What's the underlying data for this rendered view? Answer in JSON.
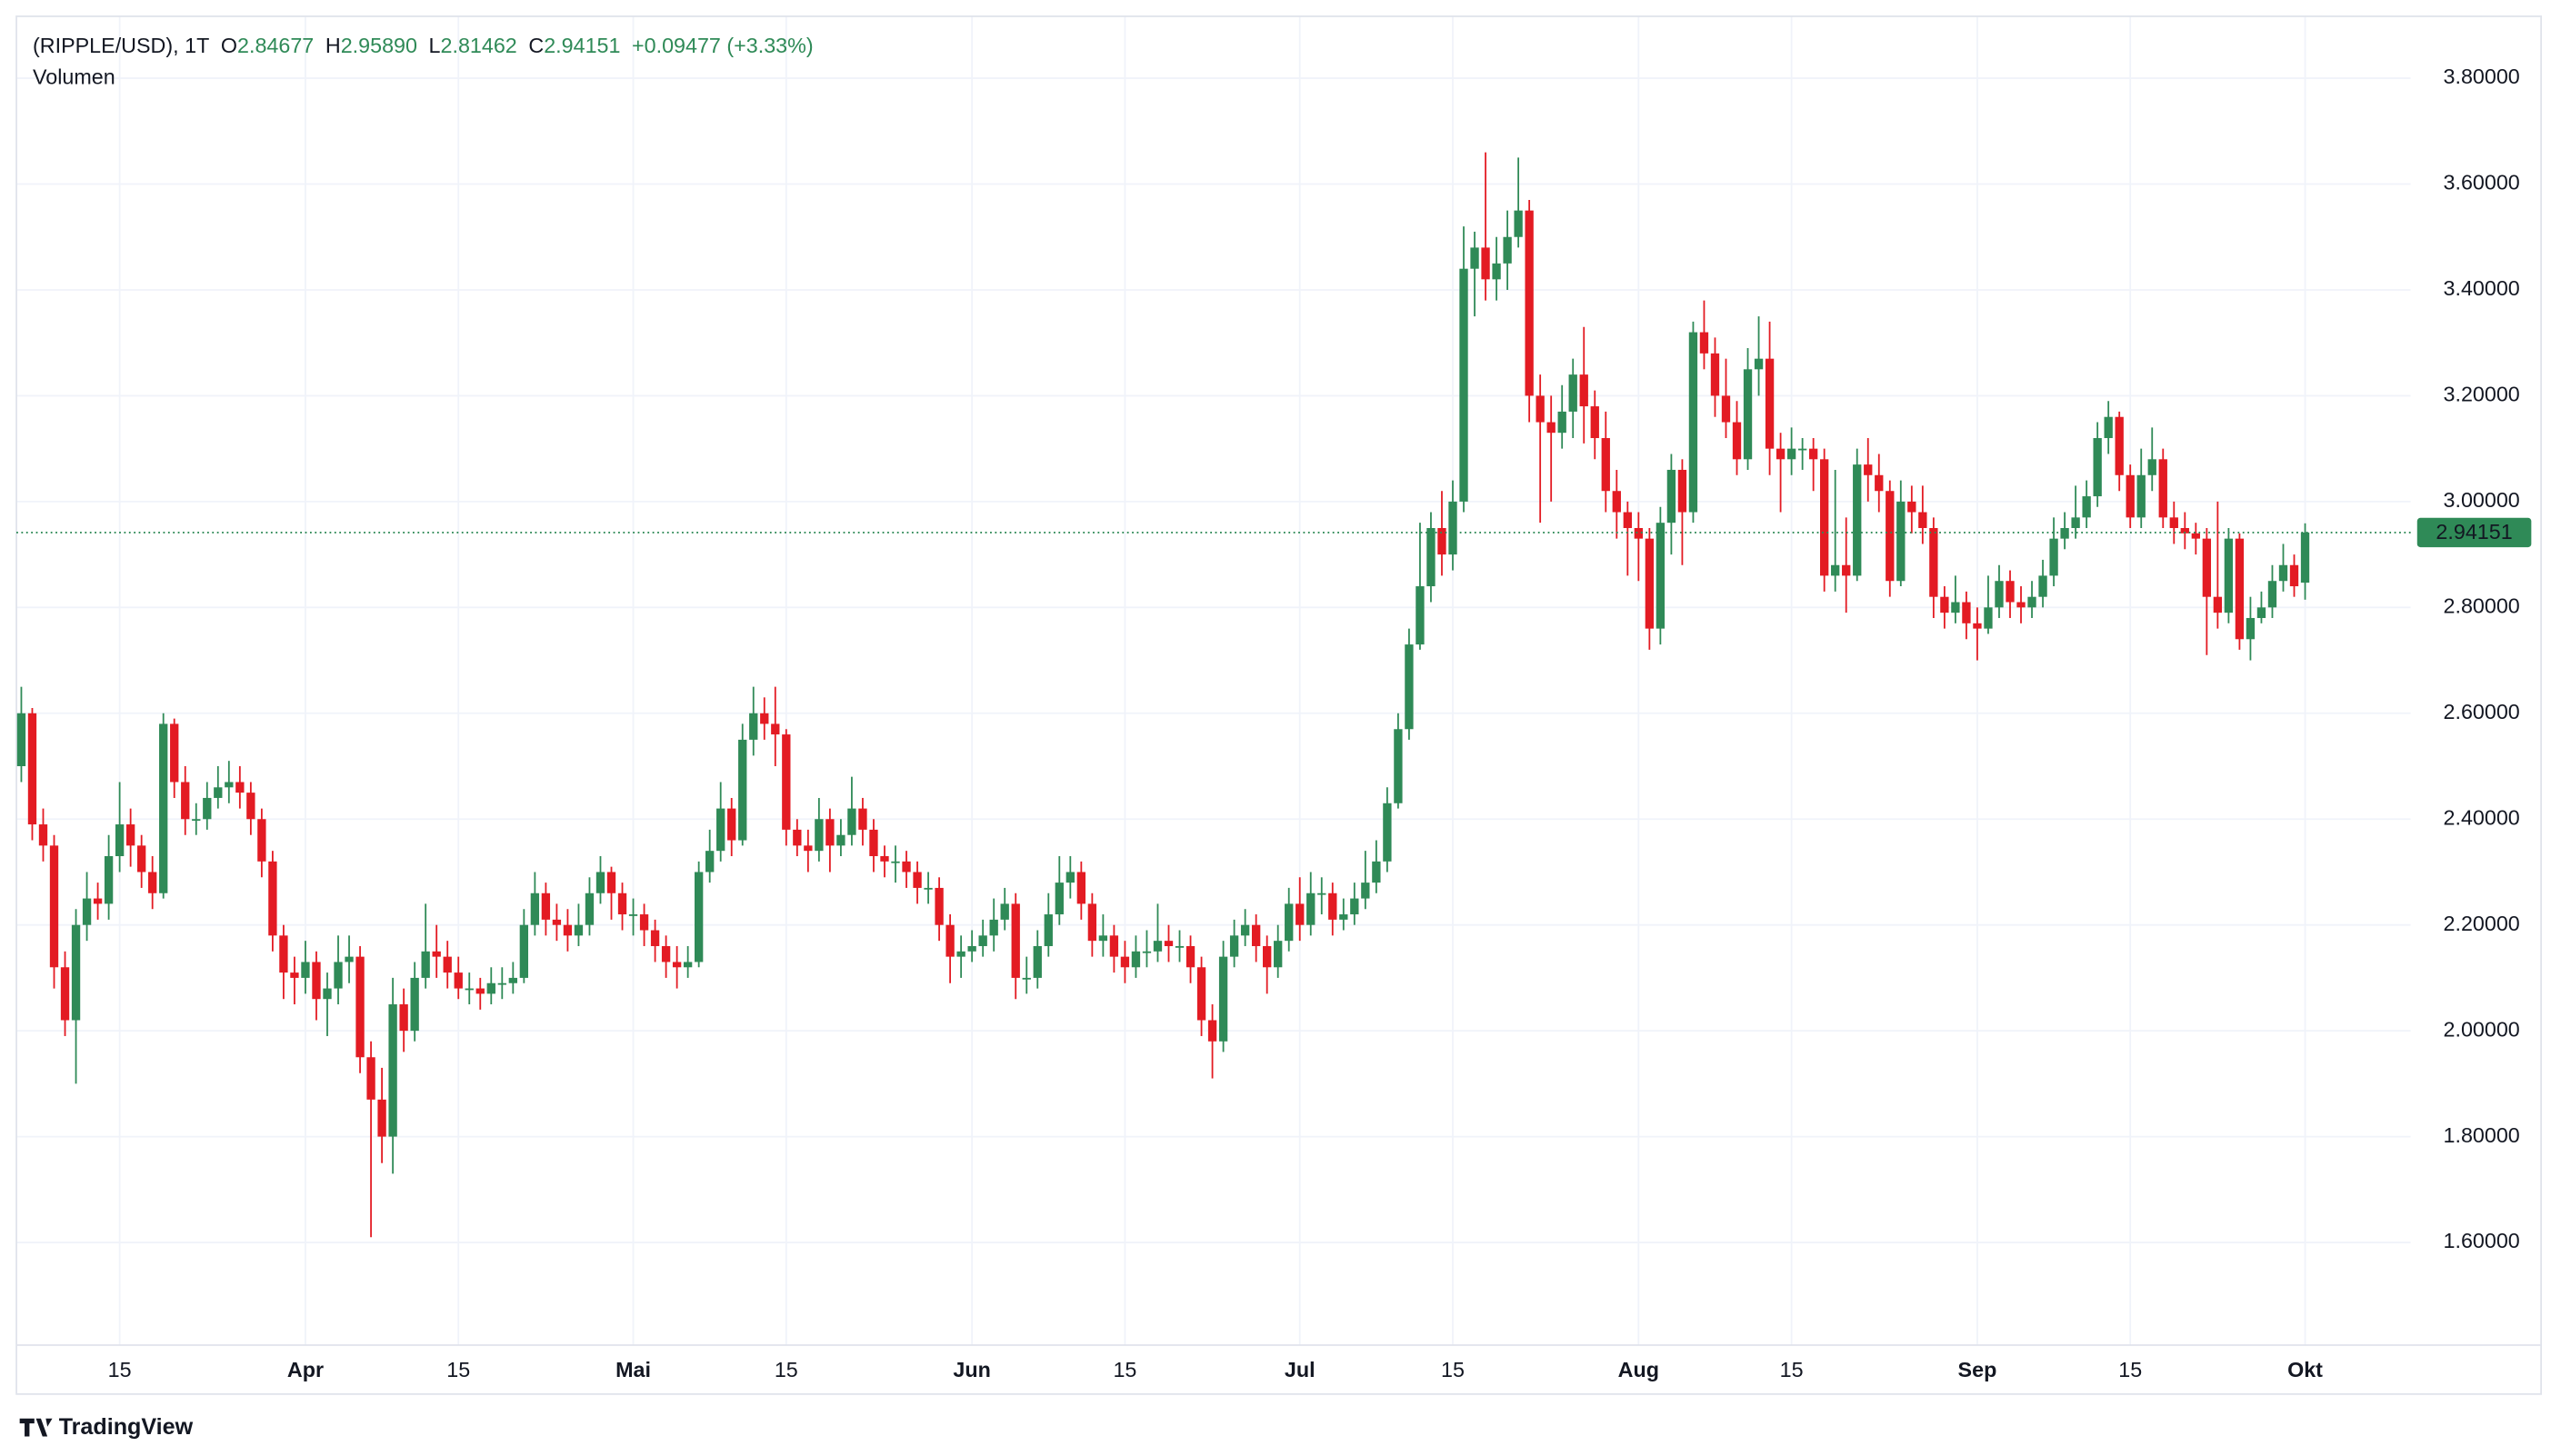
{
  "chart_data": {
    "type": "candlestick",
    "legend": {
      "symbol": "(RIPPLE/USD), 1T",
      "items": [
        {
          "label": "O",
          "value": "2.84677"
        },
        {
          "label": "H",
          "value": "2.95890"
        },
        {
          "label": "L",
          "value": "2.81462"
        },
        {
          "label": "C",
          "value": "2.94151"
        }
      ],
      "change": "+0.09477 (+3.33%)"
    },
    "volume_label": "Volumen",
    "source": "TradingView",
    "up_color": "#2f8a57",
    "down_color": "#e31b23",
    "grid": true,
    "ylim": [
      1.406,
      3.917
    ],
    "yticks": [
      {
        "value": 1.6,
        "label": "1.60000"
      },
      {
        "value": 1.8,
        "label": "1.80000"
      },
      {
        "value": 2.0,
        "label": "2.00000"
      },
      {
        "value": 2.2,
        "label": "2.20000"
      },
      {
        "value": 2.4,
        "label": "2.40000"
      },
      {
        "value": 2.6,
        "label": "2.60000"
      },
      {
        "value": 2.8,
        "label": "2.80000"
      },
      {
        "value": 3.0,
        "label": "3.00000"
      },
      {
        "value": 3.2,
        "label": "3.20000"
      },
      {
        "value": 3.4,
        "label": "3.40000"
      },
      {
        "value": 3.6,
        "label": "3.60000"
      },
      {
        "value": 3.8,
        "label": "3.80000"
      }
    ],
    "categories": [
      null,
      null,
      null,
      null,
      null,
      null,
      null,
      null,
      null,
      "15",
      null,
      null,
      null,
      null,
      null,
      null,
      null,
      null,
      null,
      null,
      null,
      null,
      null,
      null,
      null,
      null,
      "Apr",
      null,
      null,
      null,
      null,
      null,
      null,
      null,
      null,
      null,
      null,
      null,
      null,
      null,
      "15",
      null,
      null,
      null,
      null,
      null,
      null,
      null,
      null,
      null,
      null,
      null,
      null,
      null,
      null,
      null,
      "Mai",
      null,
      null,
      null,
      null,
      null,
      null,
      null,
      null,
      null,
      null,
      null,
      null,
      null,
      "15",
      null,
      null,
      null,
      null,
      null,
      null,
      null,
      null,
      null,
      null,
      null,
      null,
      null,
      null,
      null,
      null,
      "Jun",
      null,
      null,
      null,
      null,
      null,
      null,
      null,
      null,
      null,
      null,
      null,
      null,
      null,
      "15",
      null,
      null,
      null,
      null,
      null,
      null,
      null,
      null,
      null,
      null,
      null,
      null,
      null,
      null,
      null,
      "Jul",
      null,
      null,
      null,
      null,
      null,
      null,
      null,
      null,
      null,
      null,
      null,
      null,
      null,
      "15",
      null,
      null,
      null,
      null,
      null,
      null,
      null,
      null,
      null,
      null,
      null,
      null,
      null,
      null,
      null,
      null,
      "Aug",
      null,
      null,
      null,
      null,
      null,
      null,
      null,
      null,
      null,
      null,
      null,
      null,
      null,
      "15",
      null,
      null,
      null,
      null,
      null,
      null,
      null,
      null,
      null,
      null,
      null,
      null,
      null,
      null,
      null,
      null,
      "Sep",
      null,
      null,
      null,
      null,
      null,
      null,
      null,
      null,
      null,
      null,
      null,
      null,
      null,
      "15",
      null,
      null,
      null,
      null,
      null,
      null,
      null,
      null,
      null,
      null,
      null,
      null,
      null,
      null,
      null,
      "Okt"
    ],
    "open": [
      2.5,
      2.6,
      2.39,
      2.35,
      2.12,
      2.02,
      2.2,
      2.25,
      2.24,
      2.33,
      2.39,
      2.35,
      2.3,
      2.26,
      2.58,
      2.47,
      2.4,
      2.4,
      2.44,
      2.46,
      2.47,
      2.45,
      2.4,
      2.32,
      2.18,
      2.11,
      2.1,
      2.13,
      2.06,
      2.08,
      2.13,
      2.14,
      1.95,
      1.87,
      1.8,
      2.05,
      2.0,
      2.1,
      2.15,
      2.14,
      2.11,
      2.08,
      2.08,
      2.07,
      2.09,
      2.09,
      2.1,
      2.2,
      2.26,
      2.21,
      2.2,
      2.18,
      2.2,
      2.26,
      2.3,
      2.26,
      2.22,
      2.22,
      2.19,
      2.16,
      2.13,
      2.12,
      2.13,
      2.3,
      2.34,
      2.42,
      2.36,
      2.55,
      2.6,
      2.58,
      2.56,
      2.38,
      2.35,
      2.34,
      2.4,
      2.35,
      2.37,
      2.42,
      2.38,
      2.33,
      2.32,
      2.32,
      2.3,
      2.27,
      2.27,
      2.2,
      2.14,
      2.15,
      2.16,
      2.18,
      2.21,
      2.24,
      2.1,
      2.1,
      2.16,
      2.22,
      2.28,
      2.3,
      2.24,
      2.17,
      2.18,
      2.14,
      2.12,
      2.15,
      2.15,
      2.17,
      2.16,
      2.16,
      2.12,
      2.02,
      1.98,
      2.14,
      2.18,
      2.2,
      2.16,
      2.12,
      2.17,
      2.24,
      2.2,
      2.26,
      2.26,
      2.21,
      2.22,
      2.25,
      2.28,
      2.32,
      2.43,
      2.57,
      2.73,
      2.84,
      2.95,
      2.9,
      3.0,
      3.44,
      3.48,
      3.42,
      3.45,
      3.5,
      3.55,
      3.2,
      3.15,
      3.13,
      3.17,
      3.24,
      3.18,
      3.12,
      3.02,
      2.98,
      2.95,
      2.93,
      2.76,
      2.96,
      3.06,
      2.98,
      3.32,
      3.28,
      3.2,
      3.15,
      3.08,
      3.25,
      3.27,
      3.1,
      3.08,
      3.1,
      3.1,
      3.08,
      2.86,
      2.88,
      2.86,
      3.07,
      3.05,
      3.02,
      2.85,
      3.0,
      2.98,
      2.95,
      2.82,
      2.79,
      2.81,
      2.77,
      2.76,
      2.8,
      2.85,
      2.81,
      2.8,
      2.82,
      2.86,
      2.93,
      2.95,
      2.97,
      3.01,
      3.12,
      3.16,
      3.05,
      2.97,
      3.05,
      3.08,
      2.97,
      2.95,
      2.94,
      2.93,
      2.82,
      2.79,
      2.93,
      2.74,
      2.78,
      2.8,
      2.85,
      2.88,
      2.84677
    ],
    "high": [
      2.65,
      2.61,
      2.42,
      2.37,
      2.15,
      2.23,
      2.3,
      2.28,
      2.37,
      2.47,
      2.42,
      2.37,
      2.33,
      2.6,
      2.59,
      2.5,
      2.43,
      2.47,
      2.5,
      2.51,
      2.5,
      2.47,
      2.42,
      2.34,
      2.2,
      2.14,
      2.17,
      2.15,
      2.11,
      2.18,
      2.18,
      2.16,
      1.98,
      1.93,
      2.1,
      2.08,
      2.13,
      2.24,
      2.2,
      2.17,
      2.14,
      2.11,
      2.1,
      2.12,
      2.12,
      2.13,
      2.23,
      2.3,
      2.28,
      2.24,
      2.23,
      2.24,
      2.29,
      2.33,
      2.31,
      2.28,
      2.25,
      2.24,
      2.21,
      2.18,
      2.16,
      2.16,
      2.32,
      2.38,
      2.47,
      2.44,
      2.58,
      2.65,
      2.63,
      2.65,
      2.57,
      2.4,
      2.38,
      2.44,
      2.42,
      2.4,
      2.48,
      2.44,
      2.4,
      2.35,
      2.35,
      2.34,
      2.32,
      2.3,
      2.29,
      2.22,
      2.18,
      2.19,
      2.21,
      2.25,
      2.27,
      2.26,
      2.14,
      2.19,
      2.26,
      2.33,
      2.33,
      2.32,
      2.26,
      2.22,
      2.2,
      2.17,
      2.18,
      2.19,
      2.24,
      2.2,
      2.19,
      2.18,
      2.14,
      2.05,
      2.17,
      2.21,
      2.23,
      2.22,
      2.18,
      2.2,
      2.27,
      2.29,
      2.3,
      2.29,
      2.28,
      2.25,
      2.28,
      2.34,
      2.36,
      2.46,
      2.6,
      2.76,
      2.96,
      2.98,
      3.02,
      3.04,
      3.52,
      3.51,
      3.66,
      3.5,
      3.55,
      3.65,
      3.57,
      3.24,
      3.2,
      3.22,
      3.27,
      3.33,
      3.21,
      3.17,
      3.06,
      3.0,
      2.98,
      2.95,
      2.99,
      3.09,
      3.08,
      3.34,
      3.38,
      3.31,
      3.27,
      3.19,
      3.29,
      3.35,
      3.34,
      3.13,
      3.14,
      3.12,
      3.12,
      3.1,
      3.06,
      2.97,
      3.1,
      3.12,
      3.09,
      3.04,
      3.04,
      3.03,
      3.03,
      2.97,
      2.84,
      2.86,
      2.83,
      2.8,
      2.86,
      2.88,
      2.87,
      2.84,
      2.85,
      2.89,
      2.97,
      2.98,
      3.03,
      3.04,
      3.15,
      3.19,
      3.17,
      3.07,
      3.1,
      3.14,
      3.1,
      3.0,
      2.98,
      2.96,
      2.95,
      3.0,
      2.95,
      2.94,
      2.82,
      2.83,
      2.88,
      2.92,
      2.9,
      2.9589
    ],
    "low": [
      2.47,
      2.36,
      2.32,
      2.08,
      1.99,
      1.9,
      2.17,
      2.21,
      2.21,
      2.3,
      2.31,
      2.27,
      2.23,
      2.25,
      2.44,
      2.37,
      2.37,
      2.38,
      2.42,
      2.43,
      2.42,
      2.37,
      2.29,
      2.15,
      2.06,
      2.05,
      2.07,
      2.02,
      1.99,
      2.05,
      2.09,
      1.92,
      1.61,
      1.75,
      1.73,
      1.96,
      1.98,
      2.08,
      2.1,
      2.08,
      2.06,
      2.05,
      2.04,
      2.05,
      2.06,
      2.07,
      2.09,
      2.18,
      2.18,
      2.17,
      2.15,
      2.16,
      2.18,
      2.24,
      2.21,
      2.19,
      2.18,
      2.16,
      2.13,
      2.1,
      2.08,
      2.1,
      2.12,
      2.28,
      2.32,
      2.33,
      2.35,
      2.52,
      2.55,
      2.5,
      2.35,
      2.33,
      2.3,
      2.32,
      2.3,
      2.33,
      2.35,
      2.35,
      2.3,
      2.29,
      2.28,
      2.27,
      2.24,
      2.24,
      2.17,
      2.09,
      2.1,
      2.13,
      2.14,
      2.15,
      2.19,
      2.06,
      2.07,
      2.08,
      2.14,
      2.2,
      2.25,
      2.21,
      2.14,
      2.14,
      2.11,
      2.09,
      2.1,
      2.12,
      2.13,
      2.13,
      2.13,
      2.09,
      1.99,
      1.91,
      1.96,
      2.12,
      2.16,
      2.13,
      2.07,
      2.1,
      2.15,
      2.17,
      2.18,
      2.22,
      2.18,
      2.19,
      2.2,
      2.23,
      2.26,
      2.3,
      2.42,
      2.55,
      2.72,
      2.81,
      2.86,
      2.87,
      2.98,
      3.35,
      3.38,
      3.38,
      3.4,
      3.48,
      3.15,
      2.96,
      3.0,
      3.1,
      3.12,
      3.11,
      3.08,
      2.98,
      2.93,
      2.86,
      2.85,
      2.72,
      2.73,
      2.9,
      2.88,
      2.96,
      3.25,
      3.16,
      3.12,
      3.05,
      3.06,
      3.2,
      3.05,
      2.98,
      3.05,
      3.06,
      3.02,
      2.83,
      2.83,
      2.79,
      2.85,
      3.0,
      2.98,
      2.82,
      2.84,
      2.94,
      2.92,
      2.78,
      2.76,
      2.77,
      2.74,
      2.7,
      2.75,
      2.78,
      2.78,
      2.77,
      2.78,
      2.8,
      2.84,
      2.91,
      2.93,
      2.95,
      2.99,
      3.09,
      3.02,
      2.95,
      2.95,
      3.02,
      2.95,
      2.92,
      2.91,
      2.9,
      2.71,
      2.76,
      2.77,
      2.72,
      2.7,
      2.77,
      2.78,
      2.83,
      2.82,
      2.81462
    ],
    "close": [
      2.6,
      2.39,
      2.35,
      2.12,
      2.02,
      2.2,
      2.25,
      2.24,
      2.33,
      2.39,
      2.35,
      2.3,
      2.26,
      2.58,
      2.47,
      2.4,
      2.4,
      2.44,
      2.46,
      2.47,
      2.45,
      2.4,
      2.32,
      2.18,
      2.11,
      2.1,
      2.13,
      2.06,
      2.08,
      2.13,
      2.14,
      1.95,
      1.87,
      1.8,
      2.05,
      2.0,
      2.1,
      2.15,
      2.14,
      2.11,
      2.08,
      2.08,
      2.07,
      2.09,
      2.09,
      2.1,
      2.2,
      2.26,
      2.21,
      2.2,
      2.18,
      2.2,
      2.26,
      2.3,
      2.26,
      2.22,
      2.22,
      2.19,
      2.16,
      2.13,
      2.12,
      2.13,
      2.3,
      2.34,
      2.42,
      2.36,
      2.55,
      2.6,
      2.58,
      2.56,
      2.38,
      2.35,
      2.34,
      2.4,
      2.35,
      2.37,
      2.42,
      2.38,
      2.33,
      2.32,
      2.32,
      2.3,
      2.27,
      2.27,
      2.2,
      2.14,
      2.15,
      2.16,
      2.18,
      2.21,
      2.24,
      2.1,
      2.1,
      2.16,
      2.22,
      2.28,
      2.3,
      2.24,
      2.17,
      2.18,
      2.14,
      2.12,
      2.15,
      2.15,
      2.17,
      2.16,
      2.16,
      2.12,
      2.02,
      1.98,
      2.14,
      2.18,
      2.2,
      2.16,
      2.12,
      2.17,
      2.24,
      2.2,
      2.26,
      2.26,
      2.21,
      2.22,
      2.25,
      2.28,
      2.32,
      2.43,
      2.57,
      2.73,
      2.84,
      2.95,
      2.9,
      3.0,
      3.44,
      3.48,
      3.42,
      3.45,
      3.5,
      3.55,
      3.2,
      3.15,
      3.13,
      3.17,
      3.24,
      3.18,
      3.12,
      3.02,
      2.98,
      2.95,
      2.93,
      2.76,
      2.96,
      3.06,
      2.98,
      3.32,
      3.28,
      3.2,
      3.15,
      3.08,
      3.25,
      3.27,
      3.1,
      3.08,
      3.1,
      3.1,
      3.08,
      2.86,
      2.88,
      2.86,
      3.07,
      3.05,
      3.02,
      2.85,
      3.0,
      2.98,
      2.95,
      2.82,
      2.79,
      2.81,
      2.77,
      2.76,
      2.8,
      2.85,
      2.81,
      2.8,
      2.82,
      2.86,
      2.93,
      2.95,
      2.97,
      3.01,
      3.12,
      3.16,
      3.05,
      2.97,
      3.05,
      3.08,
      2.97,
      2.95,
      2.94,
      2.93,
      2.82,
      2.79,
      2.93,
      2.74,
      2.78,
      2.8,
      2.85,
      2.88,
      2.84,
      2.94151
    ]
  }
}
